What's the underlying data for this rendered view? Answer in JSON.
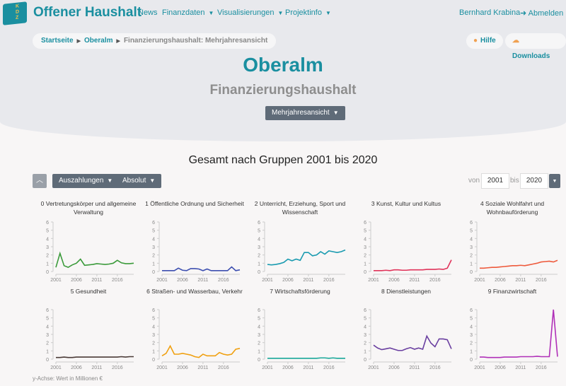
{
  "nav": {
    "brand": "Offener Haushalt",
    "logo_text": "KDZ",
    "items": [
      "News",
      "Finanzdaten",
      "Visualisierungen",
      "Projektinfo"
    ],
    "user": "Bernhard Krabina",
    "logout": "Abmelden"
  },
  "breadcrumb": [
    "Startseite",
    "Oberalm",
    "Finanzierungshaushalt: Mehrjahresansicht"
  ],
  "actions": {
    "help": "Hilfe",
    "downloads": "Downloads"
  },
  "header": {
    "title": "Oberalm",
    "subtitle": "Finanzierungshaushalt",
    "view_select": "Mehrjahresansicht"
  },
  "section_title": "Gesamt nach Gruppen 2001 bis 2020",
  "controls": {
    "type": "Auszahlungen",
    "mode": "Absolut",
    "from_label": "von",
    "from": "2001",
    "to_label": "bis",
    "to": "2020"
  },
  "footnote": "y-Achse: Wert in Millionen €",
  "chart_data": {
    "type": "line",
    "x": [
      2001,
      2002,
      2003,
      2004,
      2005,
      2006,
      2007,
      2008,
      2009,
      2010,
      2011,
      2012,
      2013,
      2014,
      2015,
      2016,
      2017,
      2018,
      2019,
      2020
    ],
    "ylim": [
      0,
      6
    ],
    "yticks": [
      "0",
      "1",
      "2",
      "3",
      "4",
      "5",
      "6"
    ],
    "xticks": [
      "2001",
      "2006",
      "2011",
      "2016"
    ],
    "series": [
      {
        "name": "0 Vertretungskörper und allgemeine Verwaltung",
        "color": "#3a9a3a",
        "values": [
          0.5,
          2.2,
          0.7,
          0.5,
          0.8,
          1.0,
          1.5,
          0.75,
          0.8,
          0.85,
          0.95,
          0.9,
          0.85,
          0.9,
          1.0,
          1.35,
          1.05,
          0.95,
          0.95,
          1.0
        ]
      },
      {
        "name": "1 Öffentliche Ordnung und Sicherheit",
        "color": "#3d4fb0",
        "values": [
          0.1,
          0.1,
          0.1,
          0.1,
          0.4,
          0.15,
          0.1,
          0.35,
          0.35,
          0.3,
          0.1,
          0.3,
          0.1,
          0.1,
          0.1,
          0.1,
          0.1,
          0.55,
          0.1,
          0.2
        ]
      },
      {
        "name": "2 Unterricht, Erziehung, Sport und Wissenschaft",
        "color": "#1a9bb0",
        "values": [
          0.85,
          0.8,
          0.85,
          0.95,
          1.1,
          1.5,
          1.3,
          1.5,
          1.35,
          2.3,
          2.3,
          1.9,
          2.0,
          2.4,
          2.1,
          2.5,
          2.4,
          2.3,
          2.4,
          2.6
        ]
      },
      {
        "name": "3 Kunst, Kultur und Kultus",
        "color": "#e0335a",
        "values": [
          0.1,
          0.1,
          0.1,
          0.15,
          0.1,
          0.2,
          0.2,
          0.15,
          0.15,
          0.2,
          0.2,
          0.2,
          0.2,
          0.25,
          0.25,
          0.25,
          0.3,
          0.25,
          0.4,
          1.4
        ]
      },
      {
        "name": "4 Soziale Wohlfahrt und Wohnbauförderung",
        "color": "#ee5a3c",
        "values": [
          0.4,
          0.4,
          0.45,
          0.5,
          0.5,
          0.55,
          0.6,
          0.65,
          0.7,
          0.7,
          0.75,
          0.7,
          0.8,
          0.9,
          1.0,
          1.15,
          1.2,
          1.25,
          1.15,
          1.35
        ]
      },
      {
        "name": "5 Gesundheit",
        "color": "#4a3a36",
        "values": [
          0.2,
          0.2,
          0.25,
          0.2,
          0.2,
          0.25,
          0.25,
          0.25,
          0.25,
          0.25,
          0.25,
          0.25,
          0.25,
          0.25,
          0.25,
          0.25,
          0.3,
          0.25,
          0.3,
          0.3
        ]
      },
      {
        "name": "6 Straßen- und Wasserbau, Verkehr",
        "color": "#f0a010",
        "values": [
          0.4,
          0.7,
          1.6,
          0.6,
          0.6,
          0.7,
          0.6,
          0.5,
          0.3,
          0.2,
          0.6,
          0.4,
          0.4,
          0.4,
          0.8,
          0.6,
          0.5,
          0.6,
          1.2,
          1.3
        ]
      },
      {
        "name": "7 Wirtschaftsförderung",
        "color": "#1aa89a",
        "values": [
          0.1,
          0.1,
          0.1,
          0.1,
          0.1,
          0.1,
          0.1,
          0.1,
          0.1,
          0.1,
          0.1,
          0.1,
          0.1,
          0.15,
          0.15,
          0.1,
          0.15,
          0.1,
          0.1,
          0.1
        ]
      },
      {
        "name": "8 Dienstleistungen",
        "color": "#6a3fa0",
        "values": [
          1.7,
          1.35,
          1.15,
          1.25,
          1.35,
          1.2,
          1.05,
          1.05,
          1.25,
          1.4,
          1.2,
          1.35,
          1.2,
          2.8,
          1.95,
          1.5,
          2.45,
          2.45,
          2.35,
          1.25
        ]
      },
      {
        "name": "9 Finanzwirtschaft",
        "color": "#b030b8",
        "values": [
          0.25,
          0.25,
          0.2,
          0.2,
          0.2,
          0.2,
          0.25,
          0.25,
          0.25,
          0.25,
          0.3,
          0.3,
          0.3,
          0.3,
          0.35,
          0.3,
          0.3,
          0.3,
          6.0,
          0.3
        ]
      }
    ]
  }
}
